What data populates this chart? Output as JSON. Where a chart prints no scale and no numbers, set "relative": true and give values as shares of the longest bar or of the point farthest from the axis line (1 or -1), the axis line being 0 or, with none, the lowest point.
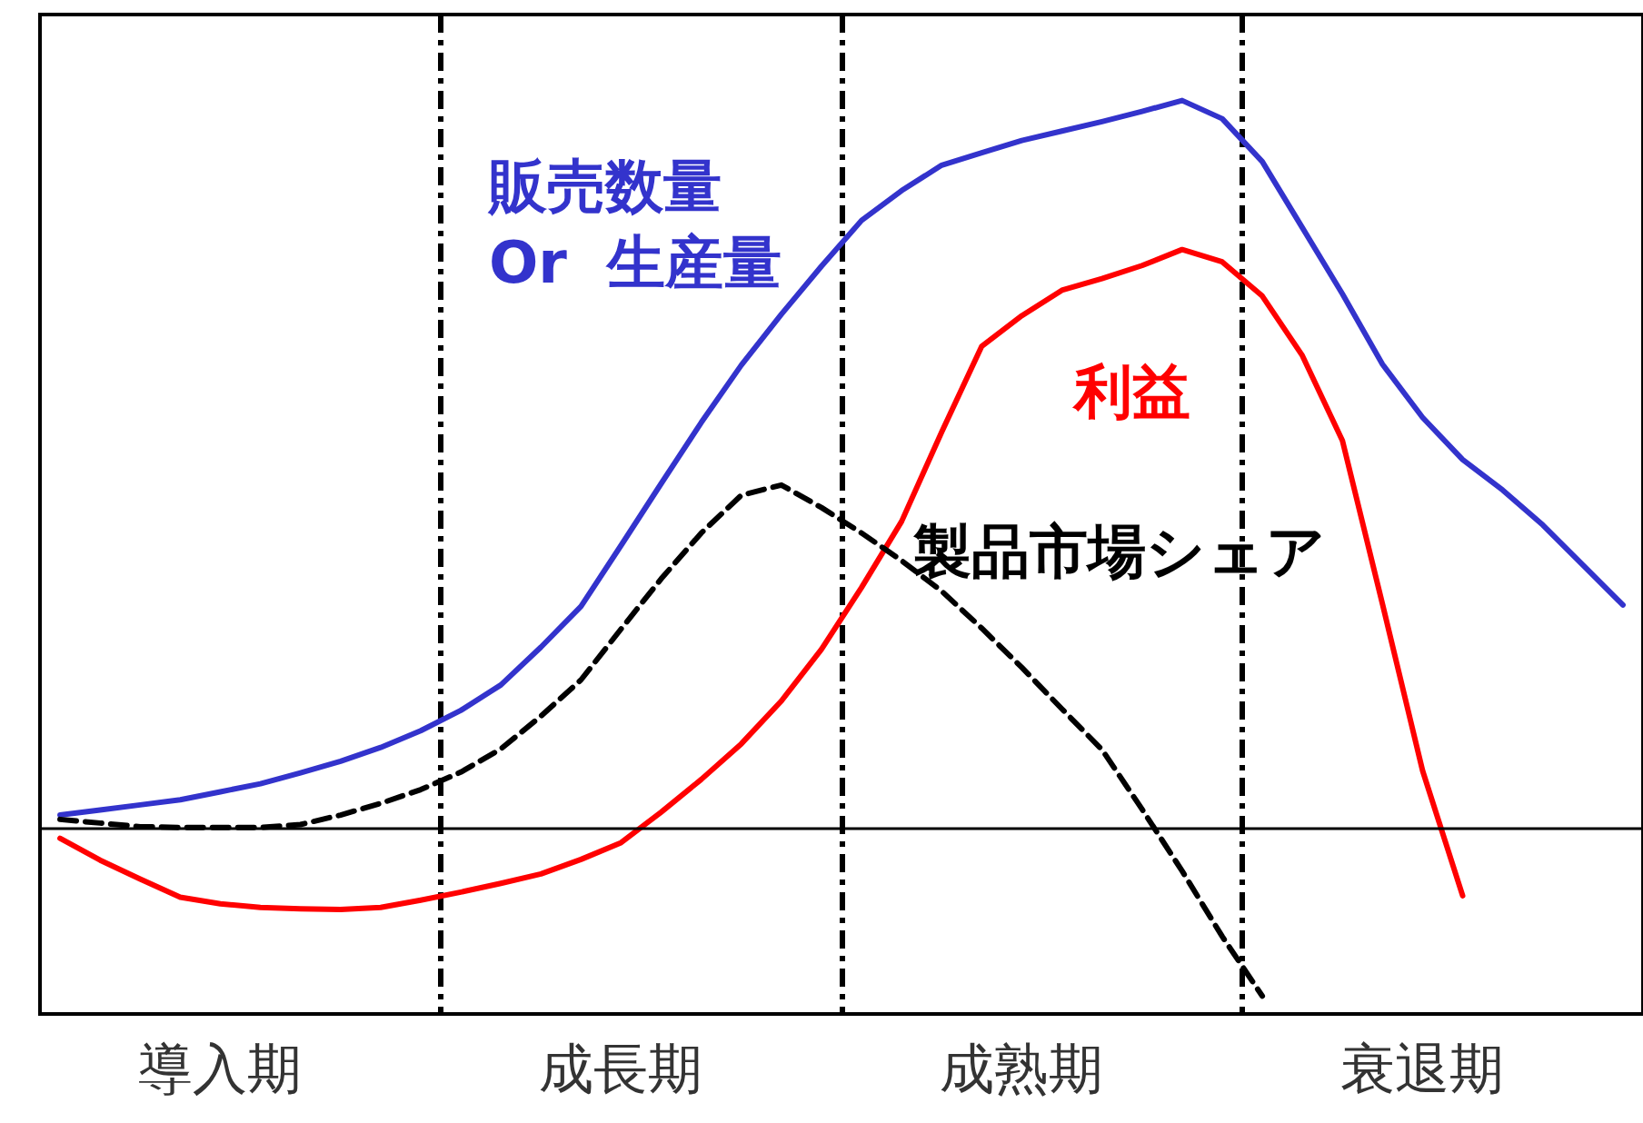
{
  "chart_data": {
    "type": "line",
    "relative": true,
    "categories": [
      null,
      null,
      null,
      null,
      "導入期",
      null,
      null,
      null,
      null,
      null,
      null,
      null,
      null,
      null,
      "成長期",
      null,
      null,
      null,
      null,
      null,
      null,
      null,
      null,
      null,
      "成熟期",
      null,
      null,
      null,
      null,
      null,
      null,
      null,
      null,
      null,
      "衰退期",
      null,
      null,
      null,
      null,
      null
    ],
    "grid": "x",
    "legend": false,
    "marker": "none",
    "series": [
      {
        "name": "販売数量\nOr  生産量",
        "color": "#3333cc",
        "values": [
          0.017,
          0.024,
          0.031,
          0.038,
          0.049,
          0.06,
          0.075,
          0.091,
          0.11,
          0.133,
          0.161,
          0.196,
          0.248,
          0.304,
          0.388,
          0.473,
          0.557,
          0.636,
          0.706,
          0.772,
          0.835,
          0.876,
          0.911,
          0.928,
          0.945,
          0.958,
          0.971,
          0.985,
          1,
          0.975,
          0.916,
          0.825,
          0.734,
          0.637,
          0.564,
          0.506,
          0.464,
          0.416,
          0.361,
          0.306
        ]
      },
      {
        "name": "利益",
        "color": "#ff0000",
        "values": [
          -0.015,
          -0.045,
          -0.071,
          -0.096,
          -0.105,
          -0.11,
          -0.112,
          -0.113,
          -0.11,
          -0.1,
          -0.089,
          -0.077,
          -0.064,
          -0.044,
          -0.021,
          0.021,
          0.066,
          0.115,
          0.174,
          0.245,
          0.33,
          0.421,
          0.544,
          0.662,
          0.704,
          0.739,
          0.755,
          0.773,
          0.795,
          0.778,
          0.731,
          0.649,
          0.532,
          0.307,
          0.078,
          -0.094,
          null,
          null,
          null,
          null
        ]
      },
      {
        "name": "製品市場シェア",
        "color": "#000000",
        "line_style": "dashed",
        "values": [
          0.011,
          0.006,
          0.001,
          0,
          0,
          0,
          0.004,
          0.017,
          0.033,
          0.052,
          0.076,
          0.108,
          0.153,
          0.203,
          0.273,
          0.342,
          0.405,
          0.457,
          0.471,
          0.44,
          0.405,
          0.367,
          0.325,
          0.274,
          0.22,
          0.163,
          0.107,
          0.025,
          -0.06,
          -0.15,
          -0.232,
          null,
          null,
          null,
          null,
          null,
          null,
          null,
          null,
          null
        ]
      }
    ]
  }
}
